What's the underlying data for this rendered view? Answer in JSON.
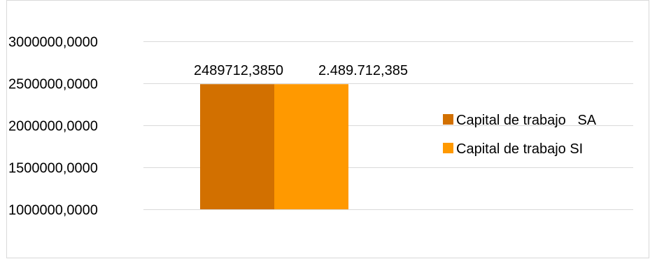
{
  "chart_data": {
    "type": "bar",
    "categories": [
      ""
    ],
    "series": [
      {
        "name": "Capital de trabajo   SA",
        "values": [
          2489712.385
        ],
        "color": "#D27000",
        "label": "2489712,3850"
      },
      {
        "name": "Capital de trabajo SI",
        "values": [
          2489712.385
        ],
        "color": "#FF9900",
        "label": "2.489.712,385"
      }
    ],
    "title": "",
    "xlabel": "",
    "ylabel": "",
    "ylim": [
      1000000,
      3000000
    ],
    "yticks": [
      {
        "value": 1000000,
        "label": "1000000,0000"
      },
      {
        "value": 1500000,
        "label": "1500000,0000"
      },
      {
        "value": 2000000,
        "label": "2000000,0000"
      },
      {
        "value": 2500000,
        "label": "2500000,0000"
      },
      {
        "value": 3000000,
        "label": "3000000,0000"
      }
    ],
    "grid": true,
    "legend": "right",
    "colors": {
      "grid": "#D9D9D9",
      "border": "#D9D9D9"
    }
  }
}
